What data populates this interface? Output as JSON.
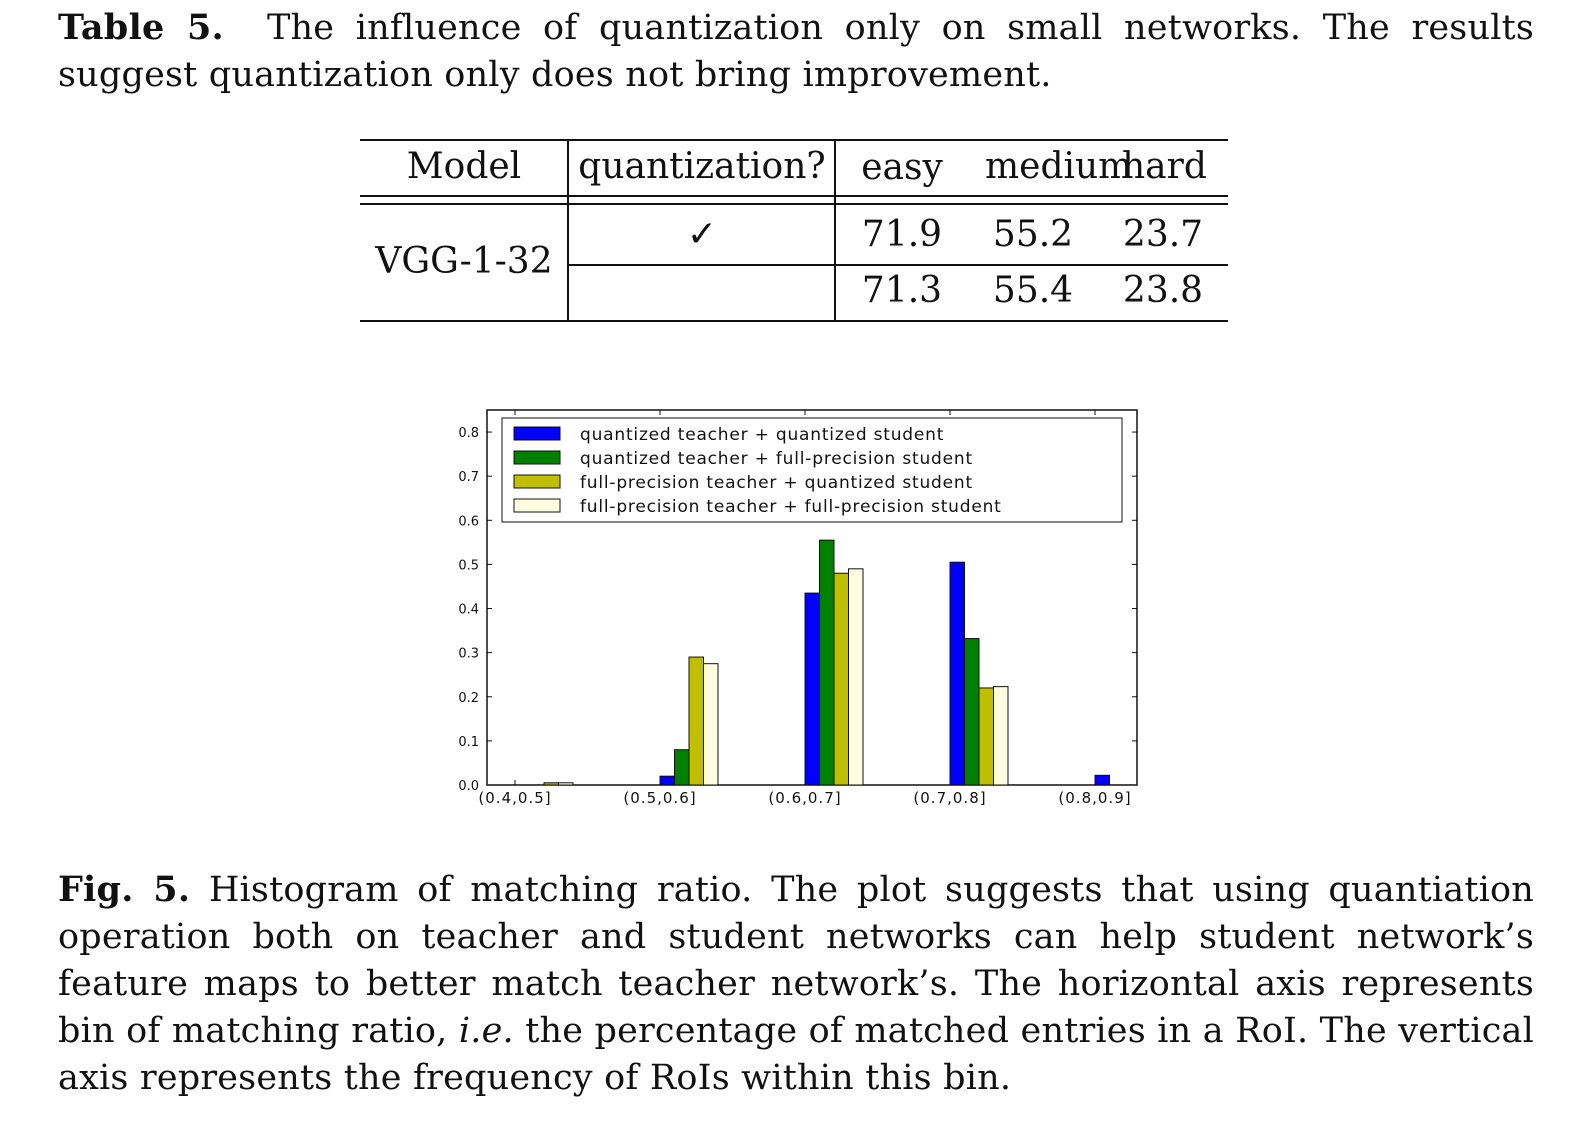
{
  "table_caption": {
    "label": "Table 5.",
    "text": "The influence of quantization only on small networks. The results suggest quantization only does not bring improvement."
  },
  "table": {
    "headers": {
      "model": "Model",
      "quantization": "quantization?",
      "easy": "easy",
      "medium": "medium",
      "hard": "hard"
    },
    "model_name": "VGG-1-32",
    "rows": [
      {
        "quantization": "✓",
        "easy": "71.9",
        "medium": "55.2",
        "hard": "23.7"
      },
      {
        "quantization": "",
        "easy": "71.3",
        "medium": "55.4",
        "hard": "23.8"
      }
    ]
  },
  "chart_data": {
    "type": "bar",
    "categories": [
      "(0.4,0.5]",
      "(0.5,0.6]",
      "(0.6,0.7]",
      "(0.7,0.8]",
      "(0.8,0.9]"
    ],
    "series": [
      {
        "name": "quantized teacher + quantized student",
        "color": "#0000ff",
        "values": [
          0.0,
          0.02,
          0.435,
          0.505,
          0.022
        ]
      },
      {
        "name": "quantized teacher + full-precision student",
        "color": "#008000",
        "values": [
          0.0,
          0.08,
          0.555,
          0.332,
          0.0
        ]
      },
      {
        "name": "full-precision teacher + quantized student",
        "color": "#bfbf00",
        "values": [
          0.005,
          0.29,
          0.48,
          0.22,
          0.0
        ]
      },
      {
        "name": "full-precision teacher + full-precision student",
        "color": "#fffde0",
        "values": [
          0.005,
          0.275,
          0.49,
          0.223,
          0.0
        ]
      }
    ],
    "yticks": [
      "0.0",
      "0.1",
      "0.2",
      "0.3",
      "0.4",
      "0.5",
      "0.6",
      "0.7",
      "0.8"
    ],
    "ylim": [
      0,
      0.85
    ],
    "legend_position": "top",
    "grid": false
  },
  "fig_caption": {
    "label": "Fig. 5.",
    "text_before_em": "Histogram of matching ratio. The plot suggests that using quantiation operation both on teacher and student networks can help student network’s feature maps to better match teacher network’s. The horizontal axis represents bin of matching ratio, ",
    "em_text": "i.e.",
    "text_after_em": " the percentage of matched entries in a RoI. The vertical axis represents the frequency of RoIs within this bin."
  }
}
